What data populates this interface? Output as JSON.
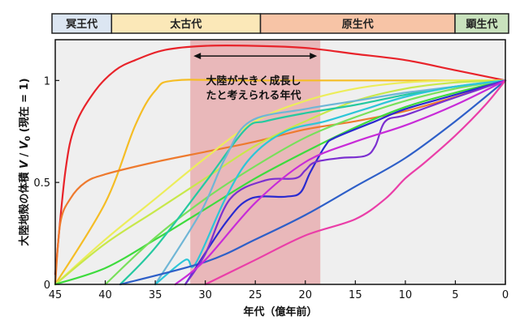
{
  "chart_data": {
    "type": "line",
    "title": "",
    "xlabel": "年代（億年前）",
    "ylabel_parts": [
      "大陸地殻の体積 ",
      "V",
      " / ",
      "V",
      "0",
      " (現在 = 1)"
    ],
    "xlim": [
      45,
      0
    ],
    "ylim": [
      0,
      1.2
    ],
    "x_ticks": [
      45,
      40,
      35,
      30,
      25,
      20,
      15,
      10,
      5,
      0
    ],
    "y_ticks": [
      0,
      0.5,
      1
    ],
    "y_tick_labels": [
      "0",
      "0.5",
      "1"
    ],
    "grid": false,
    "eons": [
      {
        "name": "冥王代",
        "from": 46,
        "to": 40,
        "color": "#dce6f2"
      },
      {
        "name": "太古代",
        "from": 40,
        "to": 25,
        "color": "#fbe8b8"
      },
      {
        "name": "原生代",
        "from": 25,
        "to": 5.4,
        "color": "#f7c4a6"
      },
      {
        "name": "顕生代",
        "from": 5.4,
        "to": 0,
        "color": "#c9e2bd"
      }
    ],
    "highlight": {
      "from": 31.5,
      "to": 18.5,
      "color": "#e8aeb0"
    },
    "annotation": {
      "lines": [
        "大陸が大きく成長し",
        "たと考えられる年代"
      ],
      "arrow_from": 31.5,
      "arrow_to": 18.5,
      "arrow_y": 1.12
    },
    "series": [
      {
        "name": "red",
        "color": "#e8232a",
        "points": [
          [
            45,
            0.05
          ],
          [
            44,
            0.55
          ],
          [
            43,
            0.78
          ],
          [
            41,
            0.95
          ],
          [
            39,
            1.05
          ],
          [
            37,
            1.1
          ],
          [
            34,
            1.15
          ],
          [
            30,
            1.17
          ],
          [
            25,
            1.17
          ],
          [
            20,
            1.16
          ],
          [
            15,
            1.13
          ],
          [
            10,
            1.1
          ],
          [
            5,
            1.05
          ],
          [
            0,
            1.0
          ]
        ]
      },
      {
        "name": "yellow-orange",
        "color": "#f5bd25",
        "points": [
          [
            45,
            0
          ],
          [
            40,
            0.4
          ],
          [
            37,
            0.78
          ],
          [
            35,
            0.95
          ],
          [
            33,
            1.0
          ],
          [
            25,
            1.0
          ],
          [
            0,
            1.0
          ]
        ]
      },
      {
        "name": "orange",
        "color": "#ee7a2e",
        "points": [
          [
            45,
            0
          ],
          [
            44.5,
            0.3
          ],
          [
            43.5,
            0.42
          ],
          [
            42,
            0.5
          ],
          [
            40,
            0.54
          ],
          [
            35,
            0.6
          ],
          [
            30,
            0.65
          ],
          [
            25,
            0.7
          ],
          [
            20,
            0.76
          ],
          [
            15,
            0.8
          ],
          [
            10,
            0.85
          ],
          [
            5,
            0.92
          ],
          [
            0,
            1.0
          ]
        ]
      },
      {
        "name": "light-yellow",
        "color": "#eced5a",
        "points": [
          [
            45,
            0
          ],
          [
            40,
            0.22
          ],
          [
            35,
            0.42
          ],
          [
            30,
            0.62
          ],
          [
            25,
            0.8
          ],
          [
            20,
            0.9
          ],
          [
            15,
            0.96
          ],
          [
            10,
            0.99
          ],
          [
            5,
            1.0
          ],
          [
            0,
            1.0
          ]
        ]
      },
      {
        "name": "lime",
        "color": "#c8e84a",
        "points": [
          [
            45,
            0
          ],
          [
            40,
            0.2
          ],
          [
            35,
            0.36
          ],
          [
            30,
            0.52
          ],
          [
            25,
            0.68
          ],
          [
            20,
            0.8
          ],
          [
            15,
            0.9
          ],
          [
            10,
            0.96
          ],
          [
            5,
            0.99
          ],
          [
            0,
            1.0
          ]
        ]
      },
      {
        "name": "green",
        "color": "#3ddb3d",
        "points": [
          [
            45,
            0
          ],
          [
            40,
            0.08
          ],
          [
            35,
            0.22
          ],
          [
            30,
            0.37
          ],
          [
            25,
            0.52
          ],
          [
            20,
            0.65
          ],
          [
            15,
            0.77
          ],
          [
            10,
            0.87
          ],
          [
            5,
            0.94
          ],
          [
            0,
            1.0
          ]
        ]
      },
      {
        "name": "green-2",
        "color": "#78e05a",
        "points": [
          [
            40,
            0
          ],
          [
            35,
            0.23
          ],
          [
            30,
            0.42
          ],
          [
            25,
            0.58
          ],
          [
            20,
            0.72
          ],
          [
            15,
            0.82
          ],
          [
            10,
            0.9
          ],
          [
            5,
            0.96
          ],
          [
            0,
            1.0
          ]
        ]
      },
      {
        "name": "teal",
        "color": "#25c9a0",
        "points": [
          [
            38.5,
            0
          ],
          [
            35,
            0.18
          ],
          [
            30,
            0.5
          ],
          [
            26,
            0.76
          ],
          [
            24,
            0.8
          ],
          [
            20,
            0.84
          ],
          [
            15,
            0.88
          ],
          [
            10,
            0.93
          ],
          [
            5,
            0.97
          ],
          [
            0,
            1.0
          ]
        ]
      },
      {
        "name": "steel-blue",
        "color": "#6fb6d6",
        "points": [
          [
            35,
            0
          ],
          [
            30.5,
            0.35
          ],
          [
            28,
            0.62
          ],
          [
            25.5,
            0.8
          ],
          [
            20,
            0.86
          ],
          [
            15,
            0.9
          ],
          [
            10,
            0.94
          ],
          [
            5,
            0.97
          ],
          [
            0,
            1.0
          ]
        ]
      },
      {
        "name": "cyan",
        "color": "#2cc6d8",
        "points": [
          [
            35,
            0
          ],
          [
            32,
            0.12
          ],
          [
            31,
            0.1
          ],
          [
            28,
            0.42
          ],
          [
            25.5,
            0.62
          ],
          [
            22,
            0.75
          ],
          [
            18,
            0.8
          ],
          [
            14,
            0.86
          ],
          [
            10,
            0.92
          ],
          [
            5,
            0.97
          ],
          [
            0,
            1.0
          ]
        ]
      },
      {
        "name": "blue",
        "color": "#2e5fc8",
        "points": [
          [
            38.5,
            0
          ],
          [
            30,
            0.11
          ],
          [
            25,
            0.22
          ],
          [
            20,
            0.34
          ],
          [
            15,
            0.48
          ],
          [
            10,
            0.62
          ],
          [
            5,
            0.8
          ],
          [
            0,
            1.0
          ]
        ]
      },
      {
        "name": "deep-blue",
        "color": "#2a2ad0",
        "points": [
          [
            32,
            0
          ],
          [
            28,
            0.3
          ],
          [
            25.5,
            0.42
          ],
          [
            22,
            0.43
          ],
          [
            20.5,
            0.45
          ],
          [
            19.5,
            0.55
          ],
          [
            18,
            0.68
          ],
          [
            17,
            0.72
          ],
          [
            13,
            0.8
          ],
          [
            10,
            0.86
          ],
          [
            5,
            0.93
          ],
          [
            0,
            1.0
          ]
        ]
      },
      {
        "name": "violet",
        "color": "#7b2fd0",
        "points": [
          [
            32,
            0
          ],
          [
            30,
            0.15
          ],
          [
            27.5,
            0.42
          ],
          [
            24,
            0.51
          ],
          [
            21,
            0.52
          ],
          [
            20,
            0.56
          ],
          [
            19,
            0.6
          ],
          [
            16.5,
            0.62
          ],
          [
            14,
            0.63
          ],
          [
            13,
            0.68
          ],
          [
            12,
            0.8
          ],
          [
            10,
            0.83
          ],
          [
            6,
            0.9
          ],
          [
            3,
            0.95
          ],
          [
            0,
            1.0
          ]
        ]
      },
      {
        "name": "magenta",
        "color": "#c82bd8",
        "points": [
          [
            33,
            0
          ],
          [
            30,
            0.12
          ],
          [
            25,
            0.4
          ],
          [
            20,
            0.6
          ],
          [
            15,
            0.7
          ],
          [
            10,
            0.78
          ],
          [
            5,
            0.88
          ],
          [
            0,
            1.0
          ]
        ]
      },
      {
        "name": "pink",
        "color": "#ea3ea8",
        "points": [
          [
            30,
            0
          ],
          [
            25,
            0.12
          ],
          [
            20,
            0.24
          ],
          [
            15,
            0.32
          ],
          [
            12,
            0.42
          ],
          [
            10,
            0.52
          ],
          [
            8,
            0.6
          ],
          [
            5,
            0.73
          ],
          [
            2,
            0.88
          ],
          [
            0,
            1.0
          ]
        ]
      }
    ]
  }
}
